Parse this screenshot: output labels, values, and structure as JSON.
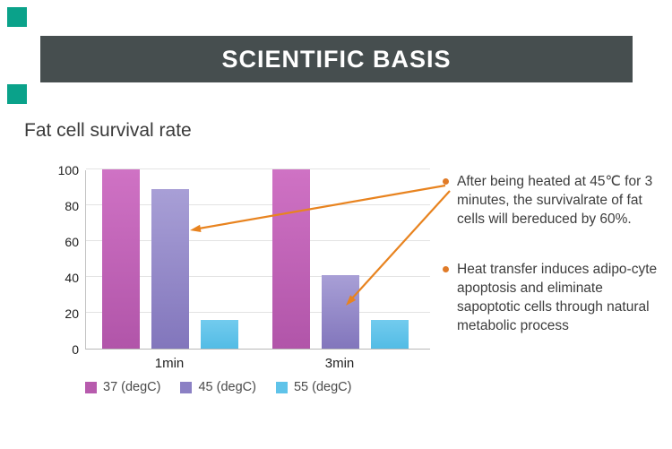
{
  "header": {
    "title": "SCIENTIFIC BASIS"
  },
  "section": {
    "title": "Fat cell survival rate"
  },
  "theme": {
    "banner_bg": "#464e4f",
    "accent_square_color": "#0aa28a"
  },
  "chart_data": {
    "type": "bar",
    "title": "Fat cell survival rate",
    "categories": [
      "1min",
      "3min"
    ],
    "series": [
      {
        "name": "37 (degC)",
        "values": [
          100,
          100
        ],
        "color_top": "#cf72c4",
        "color_bottom": "#b155a9",
        "legend_color": "#b75bad"
      },
      {
        "name": "45 (degC)",
        "values": [
          89,
          41
        ],
        "color_top": "#a89fd6",
        "color_bottom": "#8276bc",
        "legend_color": "#8b80c4"
      },
      {
        "name": "55 (degC)",
        "values": [
          16,
          16
        ],
        "color_top": "#72cbee",
        "color_bottom": "#53bce5",
        "legend_color": "#5fc3e9"
      }
    ],
    "ylim": [
      0,
      100
    ],
    "yticks": [
      0,
      20,
      40,
      60,
      80,
      100
    ],
    "grid": true,
    "legend_position": "bottom"
  },
  "bullets": [
    {
      "text": "After being heated at 45℃ for 3 minutes, the survivalrate of fat cells will bereduced by 60%."
    },
    {
      "text": "Heat transfer induces adipo-cyte apoptosis and eliminate sapoptotic cells through natural metabolic process"
    }
  ],
  "annotation": {
    "arrow_color": "#e8831f",
    "bullet_color": "#e07b28"
  }
}
